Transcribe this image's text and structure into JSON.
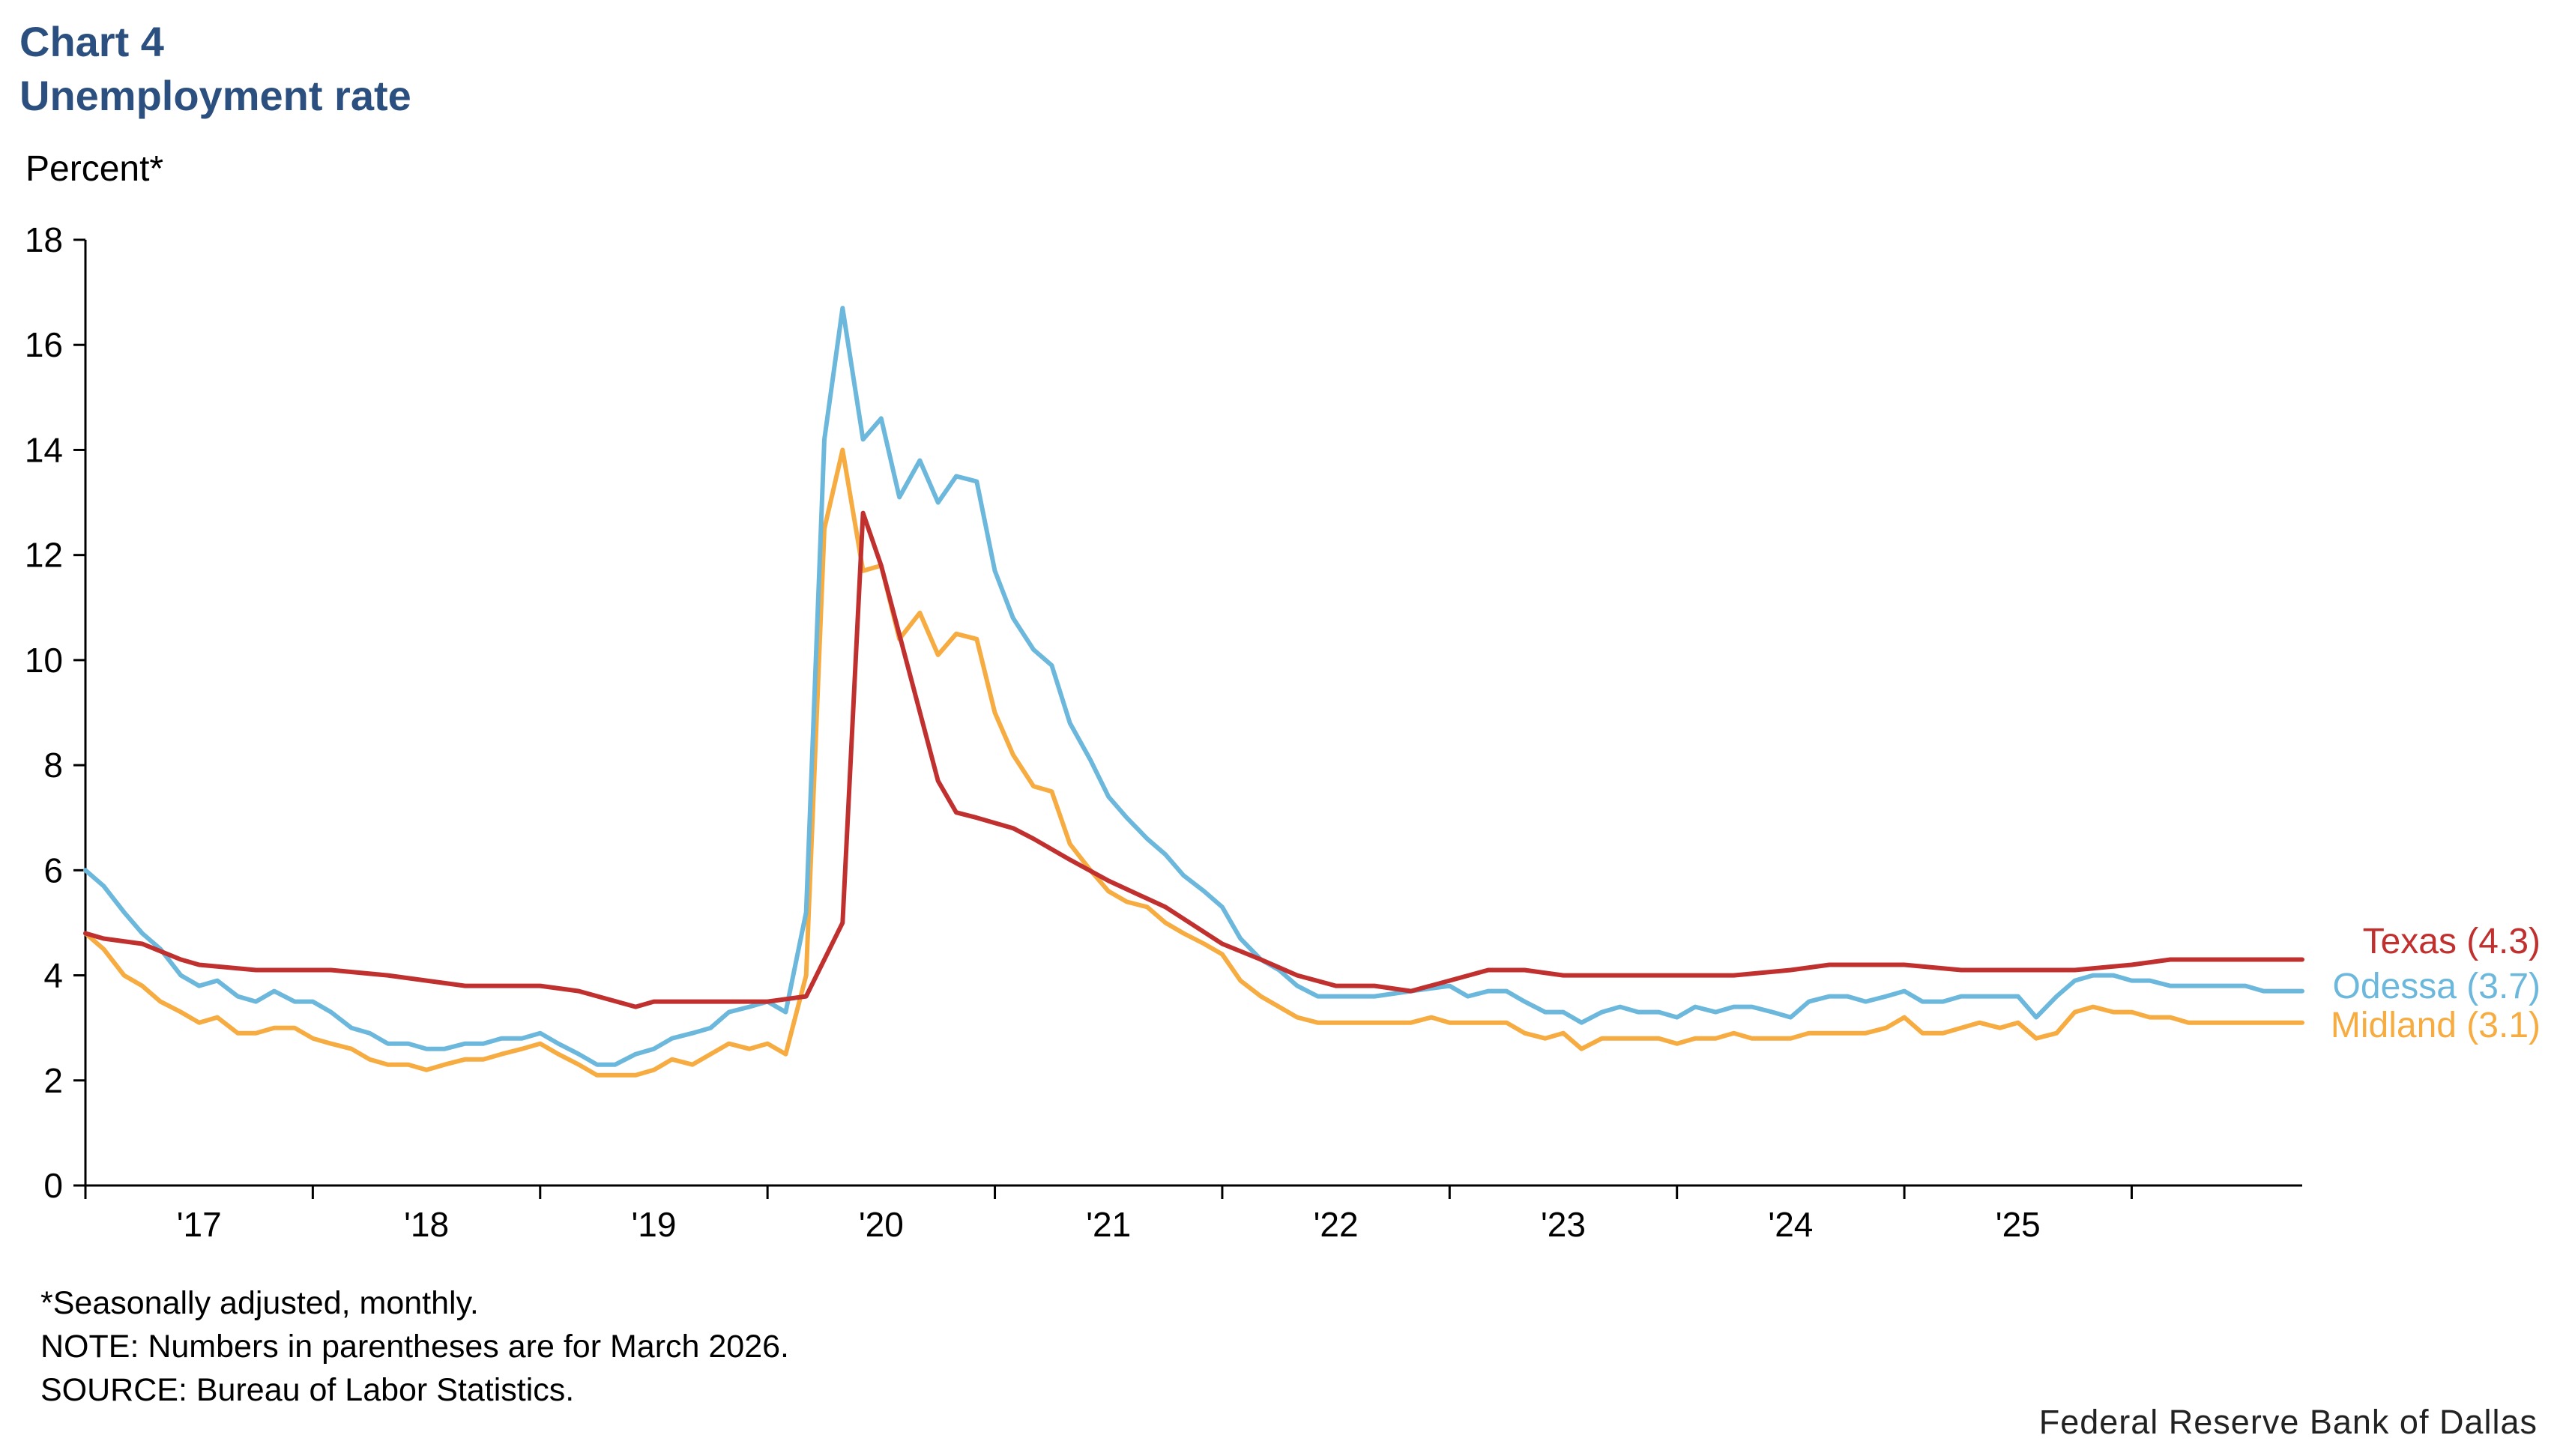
{
  "header": {
    "chart_number": "Chart 4",
    "title": "Unemployment rate"
  },
  "footer": {
    "note1": "*Seasonally adjusted, monthly.",
    "note2": "NOTE: Numbers in parentheses are for March 2026.",
    "note3": "SOURCE: Bureau of Labor Statistics.",
    "credit": "Federal Reserve Bank of Dallas"
  },
  "chart_data": {
    "type": "line",
    "title": "Unemployment rate",
    "ylabel": "Percent*",
    "xlabel": "",
    "ylim": [
      0,
      18
    ],
    "yticks": [
      0,
      2,
      4,
      6,
      8,
      10,
      12,
      14,
      16,
      18
    ],
    "xrange": [
      2016.5,
      2026.25
    ],
    "xtick_boundaries": [
      2016.5,
      2017.5,
      2018.5,
      2019.5,
      2020.5,
      2021.5,
      2022.5,
      2023.5,
      2024.5,
      2025.5,
      2026.5
    ],
    "xtick_labels": [
      "'17",
      "'18",
      "'19",
      "'20",
      "'21",
      "'22",
      "'23",
      "'24",
      "'25"
    ],
    "grid": false,
    "legend": "end-of-line labels at right",
    "series": [
      {
        "name": "Texas",
        "end_label": "Texas (4.3)",
        "color": "#c0302f",
        "x": [
          2016.5,
          2016.58,
          2016.75,
          2016.92,
          2017.0,
          2017.25,
          2017.42,
          2017.58,
          2017.83,
          2018.0,
          2018.17,
          2018.5,
          2018.67,
          2018.92,
          2019.0,
          2019.25,
          2019.5,
          2019.67,
          2019.83,
          2019.92,
          2020.0,
          2020.25,
          2020.33,
          2020.42,
          2020.5,
          2020.58,
          2020.67,
          2020.75,
          2020.83,
          2021.0,
          2021.25,
          2021.5,
          2021.67,
          2021.83,
          2022.0,
          2022.17,
          2022.33,
          2022.5,
          2022.67,
          2022.83,
          2023.0,
          2023.17,
          2023.33,
          2023.58,
          2023.75,
          2024.0,
          2024.17,
          2024.33,
          2024.5,
          2024.75,
          2024.92,
          2025.08,
          2025.25,
          2025.5,
          2025.67,
          2025.83,
          2026.0,
          2026.25
        ],
        "values": [
          4.8,
          4.7,
          4.6,
          4.3,
          4.2,
          4.1,
          4.1,
          4.1,
          4.0,
          3.9,
          3.8,
          3.8,
          3.7,
          3.4,
          3.5,
          3.5,
          3.5,
          3.6,
          5.0,
          12.8,
          11.8,
          7.7,
          7.1,
          7.0,
          6.9,
          6.8,
          6.6,
          6.4,
          6.2,
          5.8,
          5.3,
          4.6,
          4.3,
          4.0,
          3.8,
          3.8,
          3.7,
          3.9,
          4.1,
          4.1,
          4.0,
          4.0,
          4.0,
          4.0,
          4.0,
          4.1,
          4.2,
          4.2,
          4.2,
          4.1,
          4.1,
          4.1,
          4.1,
          4.2,
          4.3,
          4.3,
          4.3,
          4.3
        ]
      },
      {
        "name": "Odessa",
        "end_label": "Odessa (3.7)",
        "color": "#6cb8dc",
        "x": [
          2016.5,
          2016.58,
          2016.67,
          2016.75,
          2016.83,
          2016.92,
          2017.0,
          2017.08,
          2017.17,
          2017.25,
          2017.33,
          2017.42,
          2017.5,
          2017.58,
          2017.67,
          2017.75,
          2017.83,
          2017.92,
          2018.0,
          2018.08,
          2018.17,
          2018.25,
          2018.33,
          2018.42,
          2018.5,
          2018.58,
          2018.67,
          2018.75,
          2018.83,
          2018.92,
          2019.0,
          2019.08,
          2019.17,
          2019.25,
          2019.33,
          2019.42,
          2019.5,
          2019.58,
          2019.67,
          2019.75,
          2019.83,
          2019.92,
          2020.0,
          2020.08,
          2020.17,
          2020.25,
          2020.33,
          2020.42,
          2020.5,
          2020.58,
          2020.67,
          2020.75,
          2020.83,
          2020.92,
          2021.0,
          2021.08,
          2021.17,
          2021.25,
          2021.33,
          2021.42,
          2021.5,
          2021.58,
          2021.67,
          2021.75,
          2021.83,
          2021.92,
          2022.0,
          2022.17,
          2022.33,
          2022.5,
          2022.58,
          2022.67,
          2022.75,
          2022.83,
          2022.92,
          2023.0,
          2023.08,
          2023.17,
          2023.25,
          2023.33,
          2023.42,
          2023.5,
          2023.58,
          2023.67,
          2023.75,
          2023.83,
          2023.92,
          2024.0,
          2024.08,
          2024.17,
          2024.25,
          2024.33,
          2024.42,
          2024.5,
          2024.58,
          2024.67,
          2024.75,
          2024.83,
          2024.92,
          2025.0,
          2025.08,
          2025.17,
          2025.25,
          2025.33,
          2025.42,
          2025.5,
          2025.58,
          2025.67,
          2025.75,
          2025.83,
          2025.92,
          2026.0,
          2026.08,
          2026.17,
          2026.25
        ],
        "values": [
          6.0,
          5.7,
          5.2,
          4.8,
          4.5,
          4.0,
          3.8,
          3.9,
          3.6,
          3.5,
          3.7,
          3.5,
          3.5,
          3.3,
          3.0,
          2.9,
          2.7,
          2.7,
          2.6,
          2.6,
          2.7,
          2.7,
          2.8,
          2.8,
          2.9,
          2.7,
          2.5,
          2.3,
          2.3,
          2.5,
          2.6,
          2.8,
          2.9,
          3.0,
          3.3,
          3.4,
          3.5,
          3.3,
          5.2,
          14.2,
          16.7,
          14.2,
          14.6,
          13.1,
          13.8,
          13.0,
          13.5,
          13.4,
          11.7,
          10.8,
          10.2,
          9.9,
          8.8,
          8.1,
          7.4,
          7.0,
          6.6,
          6.3,
          5.9,
          5.6,
          5.3,
          4.7,
          4.3,
          4.1,
          3.8,
          3.6,
          3.6,
          3.6,
          3.7,
          3.8,
          3.6,
          3.7,
          3.7,
          3.5,
          3.3,
          3.3,
          3.1,
          3.3,
          3.4,
          3.3,
          3.3,
          3.2,
          3.4,
          3.3,
          3.4,
          3.4,
          3.3,
          3.2,
          3.5,
          3.6,
          3.6,
          3.5,
          3.6,
          3.7,
          3.5,
          3.5,
          3.6,
          3.6,
          3.6,
          3.6,
          3.2,
          3.6,
          3.9,
          4.0,
          4.0,
          3.9,
          3.9,
          3.8,
          3.8,
          3.8,
          3.8,
          3.8,
          3.7,
          3.7,
          3.7
        ]
      },
      {
        "name": "Midland",
        "end_label": "Midland (3.1)",
        "color": "#f6ac41",
        "x": [
          2016.5,
          2016.58,
          2016.67,
          2016.75,
          2016.83,
          2016.92,
          2017.0,
          2017.08,
          2017.17,
          2017.25,
          2017.33,
          2017.42,
          2017.5,
          2017.58,
          2017.67,
          2017.75,
          2017.83,
          2017.92,
          2018.0,
          2018.08,
          2018.17,
          2018.25,
          2018.33,
          2018.42,
          2018.5,
          2018.58,
          2018.67,
          2018.75,
          2018.83,
          2018.92,
          2019.0,
          2019.08,
          2019.17,
          2019.25,
          2019.33,
          2019.42,
          2019.5,
          2019.58,
          2019.67,
          2019.75,
          2019.83,
          2019.92,
          2020.0,
          2020.08,
          2020.17,
          2020.25,
          2020.33,
          2020.42,
          2020.5,
          2020.58,
          2020.67,
          2020.75,
          2020.83,
          2020.92,
          2021.0,
          2021.08,
          2021.17,
          2021.25,
          2021.33,
          2021.42,
          2021.5,
          2021.58,
          2021.67,
          2021.75,
          2021.83,
          2021.92,
          2022.0,
          2022.17,
          2022.33,
          2022.42,
          2022.5,
          2022.67,
          2022.75,
          2022.83,
          2022.92,
          2023.0,
          2023.08,
          2023.17,
          2023.25,
          2023.33,
          2023.42,
          2023.5,
          2023.58,
          2023.67,
          2023.75,
          2023.83,
          2023.92,
          2024.0,
          2024.08,
          2024.17,
          2024.25,
          2024.33,
          2024.42,
          2024.5,
          2024.58,
          2024.67,
          2024.75,
          2024.83,
          2024.92,
          2025.0,
          2025.08,
          2025.17,
          2025.25,
          2025.33,
          2025.42,
          2025.5,
          2025.58,
          2025.67,
          2025.75,
          2025.83,
          2025.92,
          2026.0,
          2026.08,
          2026.17,
          2026.25
        ],
        "values": [
          4.8,
          4.5,
          4.0,
          3.8,
          3.5,
          3.3,
          3.1,
          3.2,
          2.9,
          2.9,
          3.0,
          3.0,
          2.8,
          2.7,
          2.6,
          2.4,
          2.3,
          2.3,
          2.2,
          2.3,
          2.4,
          2.4,
          2.5,
          2.6,
          2.7,
          2.5,
          2.3,
          2.1,
          2.1,
          2.1,
          2.2,
          2.4,
          2.3,
          2.5,
          2.7,
          2.6,
          2.7,
          2.5,
          4.0,
          12.5,
          14.0,
          11.7,
          11.8,
          10.4,
          10.9,
          10.1,
          10.5,
          10.4,
          9.0,
          8.2,
          7.6,
          7.5,
          6.5,
          6.0,
          5.6,
          5.4,
          5.3,
          5.0,
          4.8,
          4.6,
          4.4,
          3.9,
          3.6,
          3.4,
          3.2,
          3.1,
          3.1,
          3.1,
          3.1,
          3.2,
          3.1,
          3.1,
          3.1,
          2.9,
          2.8,
          2.9,
          2.6,
          2.8,
          2.8,
          2.8,
          2.8,
          2.7,
          2.8,
          2.8,
          2.9,
          2.8,
          2.8,
          2.8,
          2.9,
          2.9,
          2.9,
          2.9,
          3.0,
          3.2,
          2.9,
          2.9,
          3.0,
          3.1,
          3.0,
          3.1,
          2.8,
          2.9,
          3.3,
          3.4,
          3.3,
          3.3,
          3.2,
          3.2,
          3.1,
          3.1,
          3.1,
          3.1,
          3.1,
          3.1,
          3.1
        ]
      }
    ]
  }
}
